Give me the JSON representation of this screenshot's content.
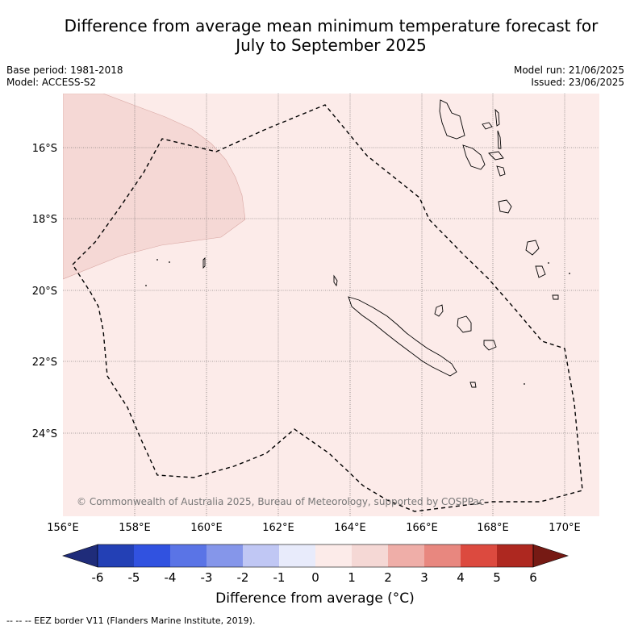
{
  "title": "Difference from average mean minimum temperature forecast for July to September 2025",
  "title_line1": "Difference from average mean minimum temperature forecast for",
  "title_line2": "July to September 2025",
  "meta_left": {
    "base_period": "Base period: 1981-2018",
    "model": "Model: ACCESS-S2"
  },
  "meta_right": {
    "model_run": "Model run: 21/06/2025",
    "issued": "Issued: 23/06/2025"
  },
  "map": {
    "lat_labels": [
      "16°S",
      "18°S",
      "20°S",
      "22°S",
      "24°S"
    ],
    "lon_labels": [
      "156°E",
      "158°E",
      "160°E",
      "162°E",
      "164°E",
      "166°E",
      "168°E",
      "170°E"
    ],
    "copyright": "© Commonwealth of Australia 2025, Bureau of Meteorology, supported by COSPPac",
    "background_anomaly_color": "#fcebe9",
    "warm_anomaly_color": "#f5d8d5"
  },
  "colorbar": {
    "ticks": [
      "-6",
      "-5",
      "-4",
      "-3",
      "-2",
      "-1",
      "0",
      "1",
      "2",
      "3",
      "4",
      "5",
      "6"
    ],
    "colors": [
      "#1f2c7a",
      "#2340b5",
      "#3152e0",
      "#5a74e6",
      "#8596ea",
      "#c0c7f4",
      "#e8ebfb",
      "#fcebe9",
      "#f5d8d5",
      "#efaea8",
      "#e8877f",
      "#dc4a3f",
      "#ae2820",
      "#761a14"
    ],
    "title": "Difference from average (°C)"
  },
  "footer": "--  --  -- EEZ border V11 (Flanders Marine Institute, 2019)."
}
